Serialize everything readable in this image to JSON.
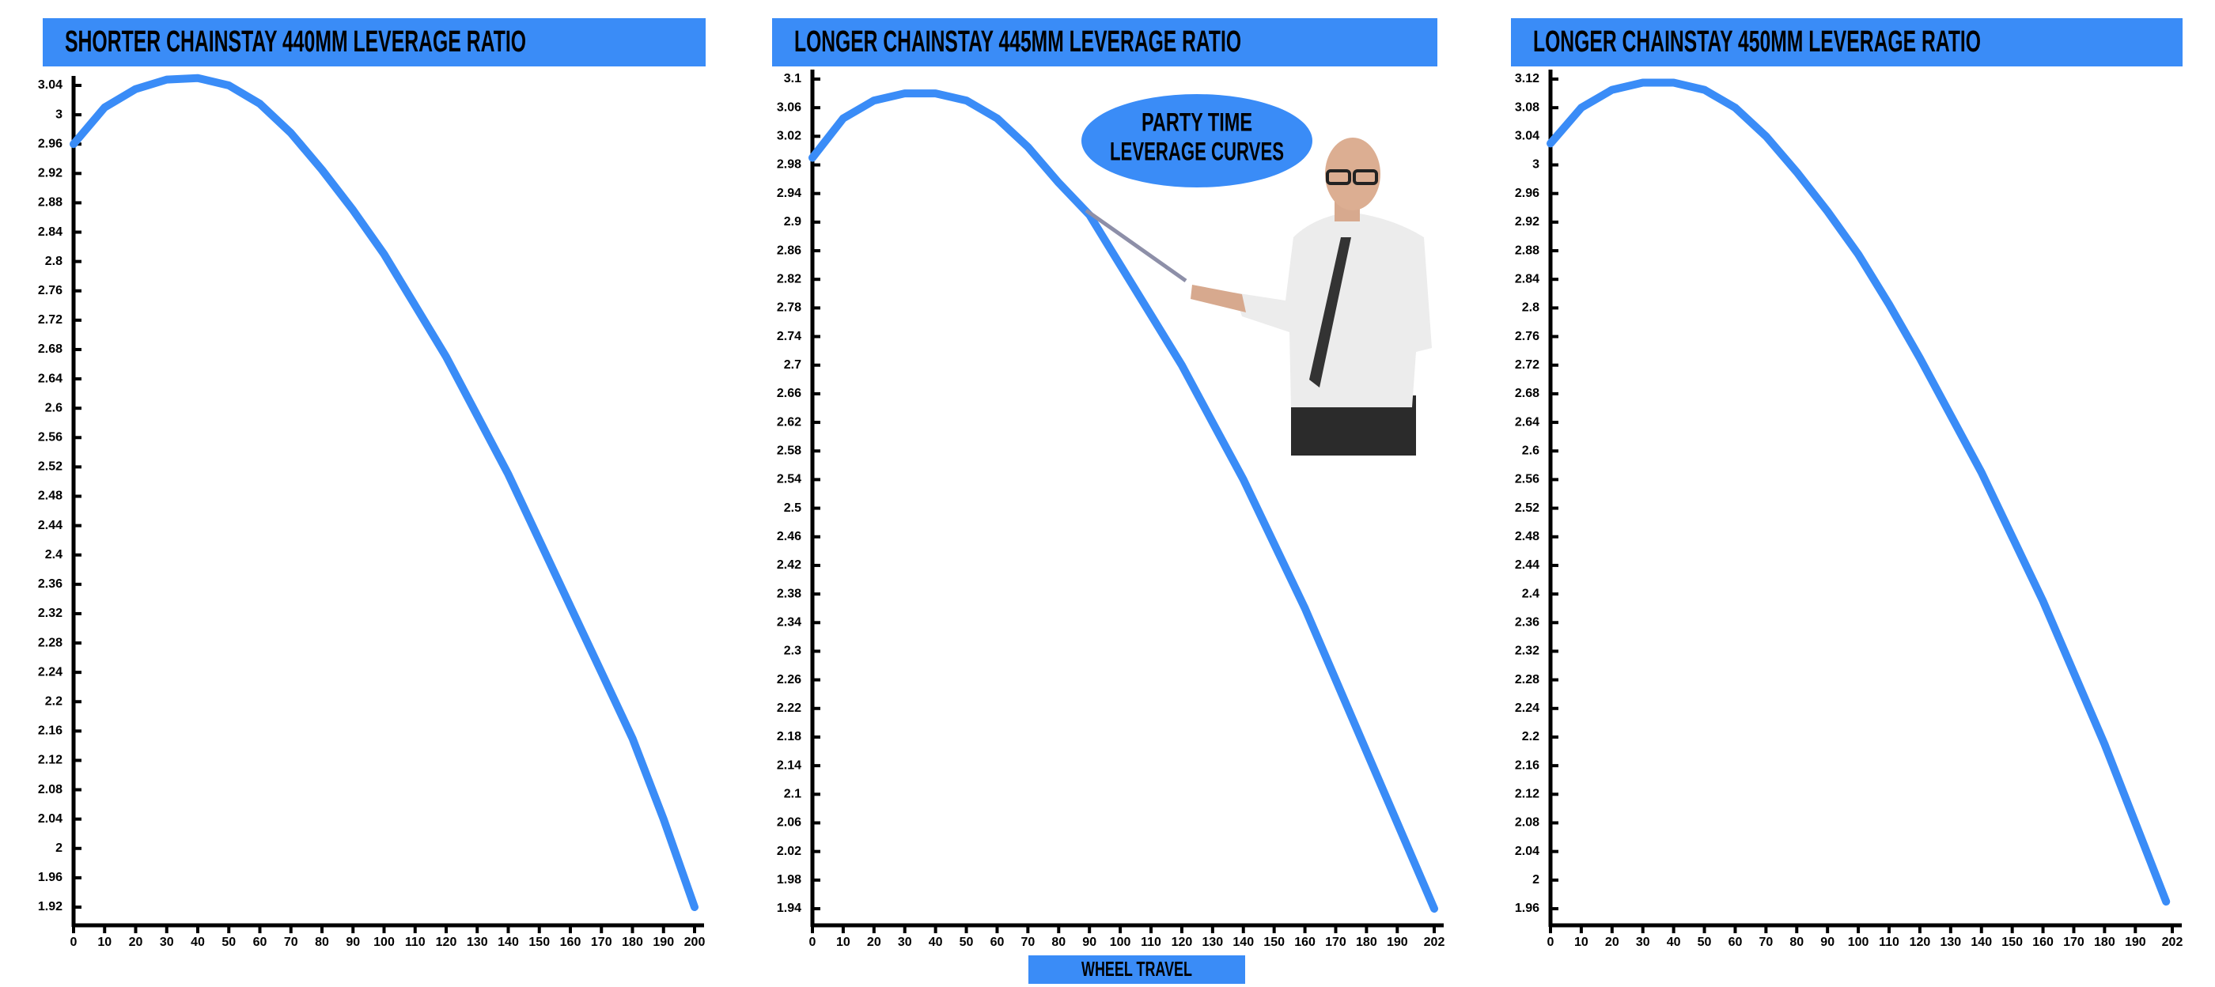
{
  "chart_data": [
    {
      "type": "line",
      "title": "SHORTER CHAINSTAY 440MM LEVERAGE RATIO",
      "color": "#3a8cf7",
      "x": [
        0,
        10,
        20,
        30,
        40,
        50,
        60,
        70,
        80,
        90,
        100,
        110,
        120,
        130,
        140,
        150,
        160,
        170,
        180,
        190,
        200
      ],
      "values": [
        2.96,
        3.01,
        3.035,
        3.048,
        3.05,
        3.04,
        3.015,
        2.975,
        2.925,
        2.87,
        2.81,
        2.74,
        2.67,
        2.59,
        2.51,
        2.42,
        2.33,
        2.24,
        2.15,
        2.04,
        1.92
      ],
      "xlim": [
        0,
        200
      ],
      "xticks": [
        0,
        10,
        20,
        30,
        40,
        50,
        60,
        70,
        80,
        90,
        100,
        110,
        120,
        130,
        140,
        150,
        160,
        170,
        180,
        190,
        200
      ],
      "ylim": [
        1.92,
        3.04
      ],
      "yticks": [
        1.92,
        1.96,
        2,
        2.04,
        2.08,
        2.12,
        2.16,
        2.2,
        2.24,
        2.28,
        2.32,
        2.36,
        2.4,
        2.44,
        2.48,
        2.52,
        2.56,
        2.6,
        2.64,
        2.68,
        2.72,
        2.76,
        2.8,
        2.84,
        2.88,
        2.92,
        2.96,
        3,
        3.04
      ]
    },
    {
      "type": "line",
      "title": "LONGER CHAINSTAY 445MM LEVERAGE RATIO",
      "color": "#3a8cf7",
      "x_label": "WHEEL TRAVEL",
      "annotation": [
        "PARTY TIME",
        "LEVERAGE CURVES"
      ],
      "x": [
        0,
        10,
        20,
        30,
        40,
        50,
        60,
        70,
        80,
        90,
        100,
        110,
        120,
        130,
        140,
        150,
        160,
        170,
        180,
        190,
        202
      ],
      "values": [
        2.99,
        3.045,
        3.07,
        3.08,
        3.08,
        3.07,
        3.045,
        3.005,
        2.955,
        2.91,
        2.84,
        2.77,
        2.7,
        2.62,
        2.54,
        2.45,
        2.36,
        2.26,
        2.16,
        2.06,
        1.94
      ],
      "xlim": [
        0,
        202
      ],
      "xticks": [
        0,
        10,
        20,
        30,
        40,
        50,
        60,
        70,
        80,
        90,
        100,
        110,
        120,
        130,
        140,
        150,
        160,
        170,
        180,
        190,
        202
      ],
      "ylim": [
        1.94,
        3.1
      ],
      "yticks": [
        1.94,
        1.98,
        2.02,
        2.06,
        2.1,
        2.14,
        2.18,
        2.22,
        2.26,
        2.3,
        2.34,
        2.38,
        2.42,
        2.46,
        2.5,
        2.54,
        2.58,
        2.62,
        2.66,
        2.7,
        2.74,
        2.78,
        2.82,
        2.86,
        2.9,
        2.94,
        2.98,
        3.02,
        3.06,
        3.1
      ]
    },
    {
      "type": "line",
      "title": "LONGER CHAINSTAY 450MM LEVERAGE RATIO",
      "color": "#3a8cf7",
      "x": [
        0,
        10,
        20,
        30,
        40,
        50,
        60,
        70,
        80,
        90,
        100,
        110,
        120,
        130,
        140,
        150,
        160,
        170,
        180,
        190,
        200
      ],
      "values": [
        3.03,
        3.08,
        3.105,
        3.115,
        3.115,
        3.105,
        3.08,
        3.04,
        2.99,
        2.935,
        2.875,
        2.805,
        2.73,
        2.65,
        2.57,
        2.48,
        2.39,
        2.29,
        2.19,
        2.08,
        1.97
      ],
      "xlim": [
        0,
        202
      ],
      "xticks": [
        0,
        10,
        20,
        30,
        40,
        50,
        60,
        70,
        80,
        90,
        100,
        110,
        120,
        130,
        140,
        150,
        160,
        170,
        180,
        190,
        202
      ],
      "ylim": [
        1.96,
        3.12
      ],
      "yticks": [
        1.96,
        2,
        2.04,
        2.08,
        2.12,
        2.16,
        2.2,
        2.24,
        2.28,
        2.32,
        2.36,
        2.4,
        2.44,
        2.48,
        2.52,
        2.56,
        2.6,
        2.64,
        2.68,
        2.72,
        2.76,
        2.8,
        2.84,
        2.88,
        2.92,
        2.96,
        3,
        3.04,
        3.08,
        3.12
      ]
    }
  ]
}
